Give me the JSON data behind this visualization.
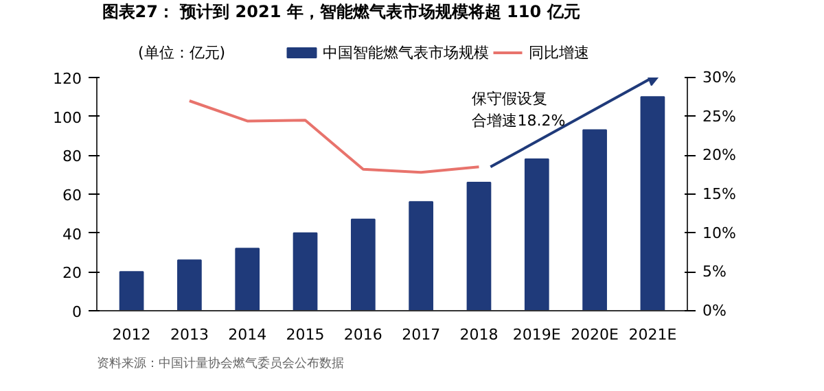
{
  "chart_data": {
    "type": "bar",
    "title": "图表27：  预计到 2021 年，智能燃气表市场规模将超 110 亿元",
    "ylabel": "(单位：亿元)",
    "categories": [
      "2012",
      "2013",
      "2014",
      "2015",
      "2016",
      "2017",
      "2018",
      "2019E",
      "2020E",
      "2021E"
    ],
    "series": [
      {
        "name": "中国智能燃气表市场规模",
        "color": "#1f3a7a",
        "values": [
          20,
          26,
          32,
          40,
          47,
          56,
          66,
          78,
          93,
          110
        ]
      },
      {
        "name": "同比增速",
        "color": "#e8736c",
        "type": "line",
        "axis": "y2",
        "values": [
          null,
          27,
          24.4,
          24.5,
          18.2,
          17.8,
          18.5,
          null,
          null,
          null
        ]
      }
    ],
    "ylim": [
      0,
      120
    ],
    "yticks": [
      0,
      20,
      40,
      60,
      80,
      100,
      120
    ],
    "y2lim": [
      0,
      30
    ],
    "y2ticks": [
      {
        "value": 0,
        "label": "0%"
      },
      {
        "value": 5,
        "label": "5%"
      },
      {
        "value": 10,
        "label": "10%"
      },
      {
        "value": 15,
        "label": "15%"
      },
      {
        "value": 20,
        "label": "20%"
      },
      {
        "value": 25,
        "label": "25%"
      },
      {
        "value": 30,
        "label": "30%"
      }
    ],
    "grid": false,
    "legend": "top",
    "annotations": [
      "保守假设复合增速18.2%",
      "资料来源：中国计量协会燃气委员会公布数据"
    ]
  }
}
